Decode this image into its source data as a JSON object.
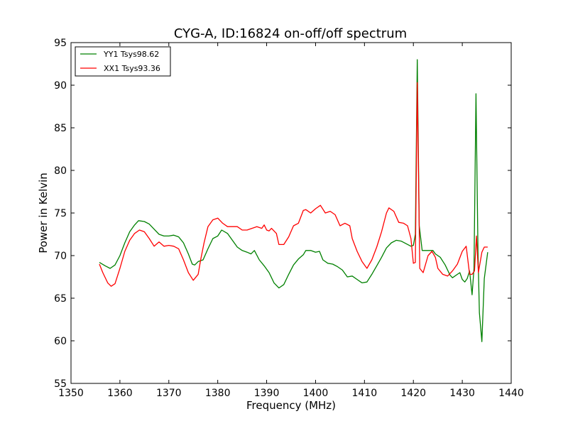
{
  "chart_data": {
    "type": "line",
    "title": "CYG-A, ID:16824 on-off/off spectrum",
    "xlabel": "Frequency (MHz)",
    "ylabel": "Power in Kelvin",
    "xlim": [
      1350,
      1440
    ],
    "ylim": [
      55,
      95
    ],
    "xticks": [
      1350,
      1360,
      1370,
      1380,
      1390,
      1400,
      1410,
      1420,
      1430,
      1440
    ],
    "yticks": [
      55,
      60,
      65,
      70,
      75,
      80,
      85,
      90,
      95
    ],
    "grid": false,
    "legend_position": "top-left",
    "series": [
      {
        "name": "YY1 Tsys98.62",
        "color": "#008000",
        "points": [
          [
            1355.8,
            69.2
          ],
          [
            1357.0,
            68.8
          ],
          [
            1358.0,
            68.5
          ],
          [
            1359.0,
            68.9
          ],
          [
            1360.0,
            70.0
          ],
          [
            1361.0,
            71.5
          ],
          [
            1362.0,
            72.8
          ],
          [
            1363.0,
            73.6
          ],
          [
            1363.8,
            74.1
          ],
          [
            1365.0,
            74.0
          ],
          [
            1366.0,
            73.7
          ],
          [
            1367.0,
            73.1
          ],
          [
            1368.0,
            72.5
          ],
          [
            1369.0,
            72.3
          ],
          [
            1370.0,
            72.3
          ],
          [
            1371.0,
            72.4
          ],
          [
            1372.0,
            72.2
          ],
          [
            1373.0,
            71.5
          ],
          [
            1374.0,
            70.2
          ],
          [
            1374.8,
            69.0
          ],
          [
            1375.3,
            68.9
          ],
          [
            1376.0,
            69.3
          ],
          [
            1377.0,
            69.5
          ],
          [
            1378.0,
            70.8
          ],
          [
            1379.0,
            72.0
          ],
          [
            1380.0,
            72.3
          ],
          [
            1380.8,
            73.0
          ],
          [
            1382.0,
            72.6
          ],
          [
            1383.0,
            71.8
          ],
          [
            1384.0,
            71.0
          ],
          [
            1385.0,
            70.6
          ],
          [
            1386.0,
            70.4
          ],
          [
            1386.8,
            70.2
          ],
          [
            1387.5,
            70.6
          ],
          [
            1388.5,
            69.5
          ],
          [
            1389.5,
            68.8
          ],
          [
            1390.5,
            68.0
          ],
          [
            1391.5,
            66.8
          ],
          [
            1392.5,
            66.2
          ],
          [
            1393.5,
            66.6
          ],
          [
            1394.5,
            67.8
          ],
          [
            1395.5,
            68.9
          ],
          [
            1396.5,
            69.6
          ],
          [
            1397.5,
            70.1
          ],
          [
            1398.0,
            70.6
          ],
          [
            1399.0,
            70.6
          ],
          [
            1400.0,
            70.4
          ],
          [
            1400.8,
            70.5
          ],
          [
            1401.5,
            69.5
          ],
          [
            1402.5,
            69.1
          ],
          [
            1403.5,
            69.0
          ],
          [
            1404.5,
            68.7
          ],
          [
            1405.5,
            68.3
          ],
          [
            1406.5,
            67.5
          ],
          [
            1407.5,
            67.6
          ],
          [
            1408.5,
            67.2
          ],
          [
            1409.5,
            66.8
          ],
          [
            1410.5,
            66.9
          ],
          [
            1411.5,
            67.8
          ],
          [
            1412.5,
            68.8
          ],
          [
            1413.5,
            69.8
          ],
          [
            1414.5,
            70.9
          ],
          [
            1415.5,
            71.5
          ],
          [
            1416.5,
            71.8
          ],
          [
            1417.5,
            71.7
          ],
          [
            1418.5,
            71.4
          ],
          [
            1419.5,
            71.1
          ],
          [
            1420.0,
            71.2
          ],
          [
            1420.4,
            72.5
          ],
          [
            1420.8,
            93.0
          ],
          [
            1421.2,
            73.5
          ],
          [
            1421.8,
            70.6
          ],
          [
            1423.0,
            70.6
          ],
          [
            1424.0,
            70.6
          ],
          [
            1424.5,
            70.2
          ],
          [
            1425.5,
            69.8
          ],
          [
            1426.5,
            68.9
          ],
          [
            1427.5,
            67.7
          ],
          [
            1428.0,
            67.4
          ],
          [
            1429.0,
            67.8
          ],
          [
            1429.5,
            68.0
          ],
          [
            1430.0,
            67.2
          ],
          [
            1430.5,
            66.9
          ],
          [
            1431.0,
            67.3
          ],
          [
            1431.5,
            68.2
          ],
          [
            1432.0,
            65.4
          ],
          [
            1432.4,
            68.5
          ],
          [
            1432.8,
            89.0
          ],
          [
            1433.2,
            70.5
          ],
          [
            1433.5,
            63.3
          ],
          [
            1434.0,
            59.9
          ],
          [
            1434.5,
            67.3
          ],
          [
            1435.2,
            70.4
          ]
        ]
      },
      {
        "name": "XX1 Tsys93.36",
        "color": "#ff0000",
        "points": [
          [
            1355.8,
            69.0
          ],
          [
            1356.5,
            68.0
          ],
          [
            1357.5,
            66.8
          ],
          [
            1358.2,
            66.4
          ],
          [
            1359.0,
            66.7
          ],
          [
            1360.0,
            68.5
          ],
          [
            1361.0,
            70.5
          ],
          [
            1362.0,
            71.8
          ],
          [
            1363.0,
            72.6
          ],
          [
            1364.0,
            73.0
          ],
          [
            1365.0,
            72.8
          ],
          [
            1366.0,
            72.0
          ],
          [
            1367.0,
            71.1
          ],
          [
            1368.0,
            71.6
          ],
          [
            1369.0,
            71.1
          ],
          [
            1370.0,
            71.2
          ],
          [
            1371.0,
            71.1
          ],
          [
            1372.0,
            70.8
          ],
          [
            1373.0,
            69.5
          ],
          [
            1374.0,
            68.0
          ],
          [
            1375.0,
            67.1
          ],
          [
            1376.0,
            67.8
          ],
          [
            1376.5,
            69.5
          ],
          [
            1377.2,
            71.5
          ],
          [
            1378.0,
            73.4
          ],
          [
            1379.0,
            74.2
          ],
          [
            1380.0,
            74.4
          ],
          [
            1381.0,
            73.8
          ],
          [
            1382.0,
            73.4
          ],
          [
            1383.0,
            73.4
          ],
          [
            1384.0,
            73.4
          ],
          [
            1385.0,
            73.0
          ],
          [
            1386.0,
            73.0
          ],
          [
            1387.0,
            73.2
          ],
          [
            1388.0,
            73.4
          ],
          [
            1389.0,
            73.2
          ],
          [
            1389.5,
            73.6
          ],
          [
            1390.0,
            73.0
          ],
          [
            1390.5,
            72.9
          ],
          [
            1391.0,
            73.2
          ],
          [
            1392.0,
            72.6
          ],
          [
            1392.5,
            71.3
          ],
          [
            1393.5,
            71.3
          ],
          [
            1394.5,
            72.2
          ],
          [
            1395.5,
            73.5
          ],
          [
            1396.5,
            73.8
          ],
          [
            1397.5,
            75.3
          ],
          [
            1398.0,
            75.4
          ],
          [
            1399.0,
            75.0
          ],
          [
            1400.0,
            75.5
          ],
          [
            1401.0,
            75.9
          ],
          [
            1402.0,
            75.0
          ],
          [
            1403.0,
            75.2
          ],
          [
            1404.0,
            74.8
          ],
          [
            1405.0,
            73.5
          ],
          [
            1406.0,
            73.8
          ],
          [
            1407.0,
            73.5
          ],
          [
            1407.5,
            72.0
          ],
          [
            1408.5,
            70.5
          ],
          [
            1409.5,
            69.3
          ],
          [
            1410.5,
            68.5
          ],
          [
            1411.5,
            69.5
          ],
          [
            1412.5,
            71.0
          ],
          [
            1413.5,
            72.8
          ],
          [
            1414.5,
            75.0
          ],
          [
            1415.0,
            75.6
          ],
          [
            1416.0,
            75.2
          ],
          [
            1417.0,
            73.9
          ],
          [
            1418.0,
            73.8
          ],
          [
            1418.8,
            73.5
          ],
          [
            1419.5,
            72.0
          ],
          [
            1420.0,
            69.1
          ],
          [
            1420.4,
            69.2
          ],
          [
            1420.8,
            90.3
          ],
          [
            1421.3,
            68.5
          ],
          [
            1422.0,
            68.0
          ],
          [
            1423.0,
            70.0
          ],
          [
            1423.8,
            70.5
          ],
          [
            1424.5,
            69.8
          ],
          [
            1425.0,
            68.5
          ],
          [
            1426.0,
            67.8
          ],
          [
            1427.0,
            67.6
          ],
          [
            1428.0,
            68.2
          ],
          [
            1429.0,
            69.0
          ],
          [
            1430.0,
            70.5
          ],
          [
            1430.8,
            71.1
          ],
          [
            1431.5,
            67.8
          ],
          [
            1432.0,
            67.8
          ],
          [
            1432.5,
            68.2
          ],
          [
            1432.9,
            72.3
          ],
          [
            1433.3,
            68.0
          ],
          [
            1434.0,
            70.4
          ],
          [
            1434.5,
            71.0
          ],
          [
            1435.2,
            71.0
          ]
        ]
      }
    ]
  }
}
